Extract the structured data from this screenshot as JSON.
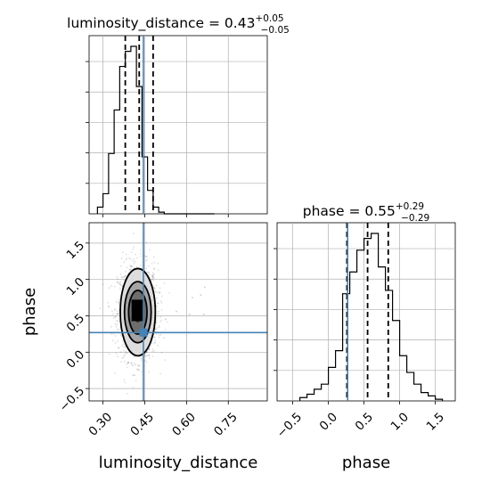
{
  "chart_data": [
    {
      "type": "histogram",
      "panel": "luminosity_distance marginal",
      "title": {
        "name": "luminosity_distance",
        "value": "0.43",
        "plus": "+0.05",
        "minus": "−0.05"
      },
      "xlim": [
        0.25,
        0.89
      ],
      "bins": [
        0.28,
        0.3,
        0.32,
        0.34,
        0.36,
        0.38,
        0.4,
        0.42,
        0.44,
        0.46,
        0.48,
        0.5,
        0.52,
        0.54,
        0.56,
        0.58,
        0.6,
        0.62,
        0.64,
        0.66,
        0.68,
        0.7
      ],
      "values": [
        0.04,
        0.12,
        0.36,
        0.62,
        0.88,
        0.97,
        1.0,
        0.76,
        0.34,
        0.14,
        0.04,
        0.01,
        0.0,
        0.0,
        0.0,
        0.0,
        0.0,
        0.0,
        0.0,
        0.0,
        0.0
      ],
      "quantiles": [
        0.38,
        0.43,
        0.48
      ],
      "truth": 0.445,
      "grid": true
    },
    {
      "type": "histogram",
      "panel": "phase marginal",
      "title": {
        "name": "phase",
        "value": "0.55",
        "plus": "+0.29",
        "minus": "−0.29"
      },
      "xlim": [
        -0.72,
        1.78
      ],
      "bins": [
        -0.4,
        -0.3,
        -0.2,
        -0.1,
        0.0,
        0.1,
        0.2,
        0.3,
        0.4,
        0.5,
        0.6,
        0.7,
        0.8,
        0.9,
        1.0,
        1.1,
        1.2,
        1.3,
        1.4,
        1.5,
        1.6
      ],
      "values": [
        0.02,
        0.04,
        0.07,
        0.1,
        0.2,
        0.3,
        0.64,
        0.77,
        0.9,
        0.97,
        1.0,
        0.8,
        0.66,
        0.48,
        0.27,
        0.17,
        0.1,
        0.05,
        0.03,
        0.01
      ],
      "quantiles": [
        0.26,
        0.55,
        0.84
      ],
      "truth": 0.27,
      "grid": true
    },
    {
      "type": "scatter",
      "panel": "2D posterior",
      "xlabel": "luminosity_distance",
      "ylabel": "phase",
      "xlim": [
        0.25,
        0.89
      ],
      "ylim": [
        -0.67,
        1.78
      ],
      "x_ticks": [
        "0.30",
        "0.45",
        "0.60",
        "0.75"
      ],
      "x_tick_values": [
        0.3,
        0.45,
        0.6,
        0.75
      ],
      "y_ticks": [
        "−0.5",
        "0.0",
        "0.5",
        "1.0",
        "1.5"
      ],
      "y_tick_values": [
        -0.5,
        0.0,
        0.5,
        1.0,
        1.5
      ],
      "density_center": [
        0.425,
        0.55
      ],
      "contour_levels": [
        {
          "sx": 0.018,
          "sy": 0.14
        },
        {
          "sx": 0.033,
          "sy": 0.3
        },
        {
          "sx": 0.048,
          "sy": 0.42
        },
        {
          "sx": 0.063,
          "sy": 0.6
        }
      ],
      "truth": [
        0.445,
        0.27
      ],
      "grid": true
    }
  ],
  "phase_x_ticks": [
    "−0.5",
    "0.0",
    "0.5",
    "1.0",
    "1.5"
  ],
  "phase_x_tick_values": [
    -0.5,
    0.0,
    0.5,
    1.0,
    1.5
  ],
  "truth_color": "#4682b4",
  "sample_color": "#000000"
}
